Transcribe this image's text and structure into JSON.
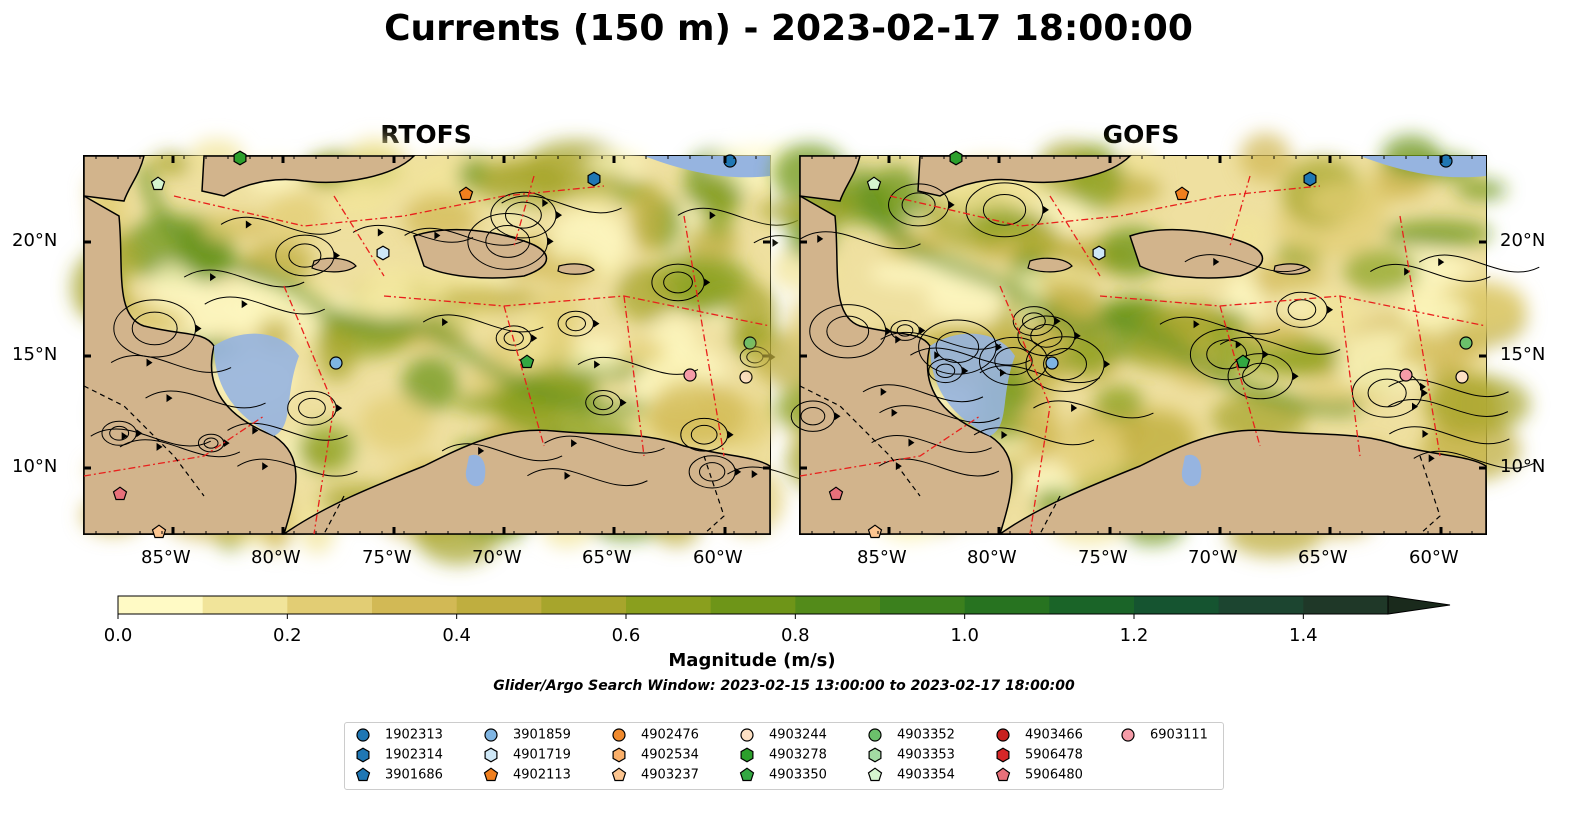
{
  "title": "Currents (150 m) - 2023-02-17 18:00:00",
  "panels": [
    {
      "title": "RTOFS"
    },
    {
      "title": "GOFS"
    }
  ],
  "axes": {
    "lon_labels": [
      "85°W",
      "80°W",
      "75°W",
      "70°W",
      "65°W",
      "60°W"
    ],
    "lat_labels": [
      "20°N",
      "15°N",
      "10°N"
    ]
  },
  "colorbar": {
    "label": "Magnitude (m/s)",
    "ticks": [
      "0.0",
      "0.2",
      "0.4",
      "0.6",
      "0.8",
      "1.0",
      "1.2",
      "1.4"
    ],
    "range": [
      0,
      1.5
    ],
    "extend": "max",
    "colors": [
      "#fffac5",
      "#f1e49a",
      "#e2cd74",
      "#d2b955",
      "#bfae3f",
      "#a7a52c",
      "#8a9f1e",
      "#6e9518",
      "#538b1a",
      "#3b801d",
      "#277320",
      "#1a6428",
      "#155430",
      "#1c4530",
      "#1f3828"
    ]
  },
  "search_window": "Glider/Argo Search Window: 2023-02-15 13:00:00 to 2023-02-17 18:00:00",
  "colors": {
    "land": "#d2b48c",
    "ocean_shelf": "#96b4e0",
    "eez_lines": "#e8201c"
  },
  "legend": [
    {
      "id": "1902313",
      "shape": "circle",
      "color": "#1f77b4"
    },
    {
      "id": "1902314",
      "shape": "hexagon",
      "color": "#1f77b4"
    },
    {
      "id": "3901686",
      "shape": "pentagon",
      "color": "#1f77b4"
    },
    {
      "id": "3901859",
      "shape": "circle",
      "color": "#7fb5e3"
    },
    {
      "id": "4901719",
      "shape": "hexagon",
      "color": "#cfe8f7"
    },
    {
      "id": "4902113",
      "shape": "pentagon",
      "color": "#f07f1e"
    },
    {
      "id": "4902476",
      "shape": "circle",
      "color": "#f08a2e"
    },
    {
      "id": "4902534",
      "shape": "hexagon",
      "color": "#fbb06a"
    },
    {
      "id": "4903237",
      "shape": "pentagon",
      "color": "#fcc590"
    },
    {
      "id": "4903244",
      "shape": "circle",
      "color": "#fde0c4"
    },
    {
      "id": "4903278",
      "shape": "hexagon",
      "color": "#2ca02c"
    },
    {
      "id": "4903350",
      "shape": "pentagon",
      "color": "#33a842"
    },
    {
      "id": "4903352",
      "shape": "circle",
      "color": "#6bc06b"
    },
    {
      "id": "4903353",
      "shape": "hexagon",
      "color": "#a3dca3"
    },
    {
      "id": "4903354",
      "shape": "pentagon",
      "color": "#d6f5cf"
    },
    {
      "id": "4903466",
      "shape": "circle",
      "color": "#c8201f"
    },
    {
      "id": "5906478",
      "shape": "hexagon",
      "color": "#d62728"
    },
    {
      "id": "5906480",
      "shape": "pentagon",
      "color": "#e8707a"
    },
    {
      "id": "6903111",
      "shape": "circle",
      "color": "#f59ca8"
    }
  ]
}
